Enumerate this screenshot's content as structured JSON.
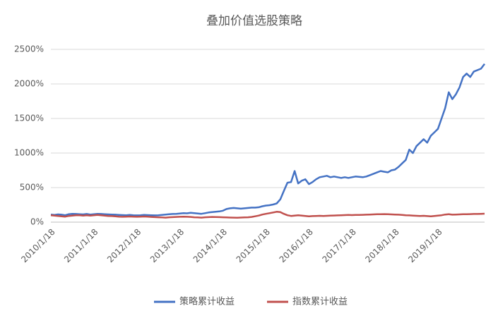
{
  "chart_data": {
    "type": "line",
    "title": "叠加价值选股策略",
    "categories": [
      "2010/1/18",
      null,
      null,
      null,
      null,
      null,
      null,
      null,
      null,
      null,
      null,
      null,
      "2011/1/18",
      null,
      null,
      null,
      null,
      null,
      null,
      null,
      null,
      null,
      null,
      null,
      "2012/1/18",
      null,
      null,
      null,
      null,
      null,
      null,
      null,
      null,
      null,
      null,
      null,
      "2013/1/18",
      null,
      null,
      null,
      null,
      null,
      null,
      null,
      null,
      null,
      null,
      null,
      "2014/1/18",
      null,
      null,
      null,
      null,
      null,
      null,
      null,
      null,
      null,
      null,
      null,
      "2015/1/18",
      null,
      null,
      null,
      null,
      null,
      null,
      null,
      null,
      null,
      null,
      null,
      "2016/1/18",
      null,
      null,
      null,
      null,
      null,
      null,
      null,
      null,
      null,
      null,
      null,
      "2017/1/18",
      null,
      null,
      null,
      null,
      null,
      null,
      null,
      null,
      null,
      null,
      null,
      "2018/1/18",
      null,
      null,
      null,
      null,
      null,
      null,
      null,
      null,
      null,
      null,
      null,
      "2019/1/18",
      null,
      null,
      null,
      null,
      null,
      null,
      null,
      null,
      null,
      null,
      null,
      null,
      null
    ],
    "series": [
      {
        "name": "策略累计收益",
        "color": "#4472c4",
        "values": [
          110,
          105,
          112,
          108,
          100,
          115,
          120,
          118,
          115,
          112,
          118,
          110,
          115,
          120,
          118,
          115,
          112,
          110,
          108,
          105,
          102,
          100,
          105,
          100,
          98,
          100,
          105,
          102,
          100,
          98,
          100,
          105,
          110,
          115,
          118,
          120,
          125,
          130,
          128,
          135,
          130,
          125,
          120,
          130,
          140,
          145,
          150,
          155,
          165,
          190,
          200,
          205,
          200,
          195,
          200,
          205,
          210,
          210,
          215,
          230,
          240,
          245,
          255,
          270,
          330,
          450,
          570,
          580,
          740,
          560,
          600,
          620,
          550,
          580,
          620,
          650,
          660,
          670,
          650,
          660,
          650,
          640,
          650,
          640,
          650,
          660,
          655,
          650,
          660,
          680,
          700,
          720,
          740,
          730,
          720,
          750,
          760,
          800,
          850,
          900,
          1050,
          1000,
          1100,
          1150,
          1200,
          1150,
          1250,
          1300,
          1350,
          1500,
          1650,
          1880,
          1780,
          1850,
          1950,
          2100,
          2150,
          2100,
          2180,
          2200,
          2220,
          2290
        ]
      },
      {
        "name": "指数累计收益",
        "color": "#c0504d",
        "values": [
          100,
          95,
          90,
          85,
          80,
          90,
          95,
          100,
          100,
          95,
          100,
          95,
          100,
          105,
          100,
          95,
          90,
          88,
          85,
          80,
          78,
          80,
          82,
          80,
          78,
          80,
          82,
          80,
          75,
          72,
          70,
          68,
          65,
          70,
          72,
          75,
          78,
          80,
          78,
          75,
          70,
          68,
          65,
          70,
          72,
          75,
          74,
          72,
          70,
          68,
          66,
          65,
          64,
          66,
          68,
          70,
          75,
          85,
          95,
          110,
          120,
          130,
          140,
          150,
          145,
          120,
          100,
          90,
          95,
          100,
          95,
          90,
          85,
          88,
          90,
          92,
          90,
          92,
          95,
          96,
          98,
          100,
          102,
          104,
          102,
          104,
          105,
          106,
          108,
          110,
          112,
          114,
          115,
          116,
          114,
          112,
          110,
          108,
          105,
          100,
          98,
          95,
          92,
          90,
          92,
          88,
          85,
          90,
          95,
          100,
          110,
          115,
          108,
          110,
          112,
          114,
          115,
          116,
          118,
          118,
          120,
          122
        ]
      }
    ],
    "ylim": [
      0,
      2500
    ],
    "yticks": [
      {
        "value": 0,
        "label": "0%"
      },
      {
        "value": 500,
        "label": "500%"
      },
      {
        "value": 1000,
        "label": "1000%"
      },
      {
        "value": 1500,
        "label": "1500%"
      },
      {
        "value": 2000,
        "label": "2000%"
      },
      {
        "value": 2500,
        "label": "2500%"
      }
    ],
    "grid": true,
    "legend": "bottom"
  }
}
